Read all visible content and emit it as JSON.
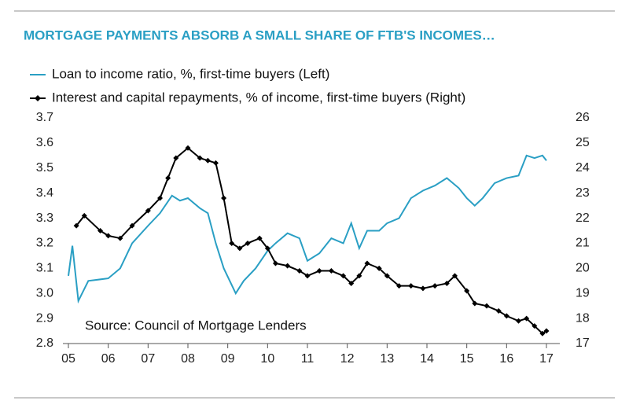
{
  "chart_data": {
    "type": "line",
    "title": "MORTGAGE PAYMENTS ABSORB A SMALL SHARE OF FTB'S INCOMES…",
    "annotation": "Source: Council of Mortgage Lenders",
    "xlim": [
      5,
      17
    ],
    "xticks": [
      {
        "value": 5,
        "label": "05"
      },
      {
        "value": 6,
        "label": "06"
      },
      {
        "value": 7,
        "label": "07"
      },
      {
        "value": 8,
        "label": "08"
      },
      {
        "value": 9,
        "label": "09"
      },
      10,
      11,
      12,
      13,
      14,
      15,
      16,
      17
    ],
    "ylim": [
      2.8,
      3.7
    ],
    "yticks": [
      3.7,
      3.6,
      3.5,
      3.4,
      3.3,
      3.2,
      3.1,
      {
        "value": 3,
        "label": "3.0"
      },
      2.9,
      2.8
    ],
    "y2lim": [
      17,
      26
    ],
    "y2ticks": [
      26,
      25,
      24,
      23,
      22,
      21,
      20,
      19,
      18,
      17
    ],
    "series": [
      {
        "name": "Loan to income ratio, %, first-time buyers (Left)",
        "color": "#2a9fc4",
        "axis": "y",
        "x": [
          5.0,
          5.1,
          5.25,
          5.5,
          6.0,
          6.3,
          6.6,
          7.0,
          7.3,
          7.6,
          7.8,
          8.0,
          8.3,
          8.5,
          8.7,
          8.9,
          9.2,
          9.4,
          9.7,
          10.0,
          10.2,
          10.5,
          10.8,
          11.0,
          11.3,
          11.6,
          11.9,
          12.1,
          12.3,
          12.5,
          12.8,
          13.0,
          13.3,
          13.6,
          13.9,
          14.2,
          14.5,
          14.8,
          15.0,
          15.2,
          15.4,
          15.7,
          16.0,
          16.3,
          16.5,
          16.7,
          16.9,
          17.0
        ],
        "values": [
          3.07,
          3.19,
          2.97,
          3.05,
          3.06,
          3.1,
          3.2,
          3.27,
          3.32,
          3.39,
          3.37,
          3.38,
          3.34,
          3.32,
          3.2,
          3.1,
          3.0,
          3.05,
          3.1,
          3.17,
          3.2,
          3.24,
          3.22,
          3.13,
          3.16,
          3.22,
          3.2,
          3.28,
          3.18,
          3.25,
          3.25,
          3.28,
          3.3,
          3.38,
          3.41,
          3.43,
          3.46,
          3.42,
          3.38,
          3.35,
          3.38,
          3.44,
          3.46,
          3.47,
          3.55,
          3.54,
          3.55,
          3.53
        ]
      },
      {
        "name": "Interest and capital repayments, % of income, first-time buyers (Right)",
        "color": "#000000",
        "axis": "y2",
        "x": [
          5.2,
          5.4,
          5.8,
          6.0,
          6.3,
          6.6,
          7.0,
          7.3,
          7.5,
          7.7,
          8.0,
          8.3,
          8.5,
          8.7,
          8.9,
          9.1,
          9.3,
          9.5,
          9.8,
          10.0,
          10.2,
          10.5,
          10.8,
          11.0,
          11.3,
          11.6,
          11.9,
          12.1,
          12.3,
          12.5,
          12.8,
          13.0,
          13.3,
          13.6,
          13.9,
          14.2,
          14.5,
          14.7,
          15.0,
          15.2,
          15.5,
          15.8,
          16.0,
          16.3,
          16.5,
          16.7,
          16.9,
          17.0
        ],
        "values": [
          21.7,
          22.1,
          21.5,
          21.3,
          21.2,
          21.7,
          22.3,
          22.8,
          23.6,
          24.4,
          24.8,
          24.4,
          24.3,
          24.2,
          22.8,
          21.0,
          20.8,
          21.0,
          21.2,
          20.8,
          20.2,
          20.1,
          19.9,
          19.7,
          19.9,
          19.9,
          19.7,
          19.4,
          19.7,
          20.2,
          20.0,
          19.7,
          19.3,
          19.3,
          19.2,
          19.3,
          19.4,
          19.7,
          19.1,
          18.6,
          18.5,
          18.3,
          18.1,
          17.9,
          18.0,
          17.7,
          17.4,
          17.5
        ]
      }
    ]
  }
}
